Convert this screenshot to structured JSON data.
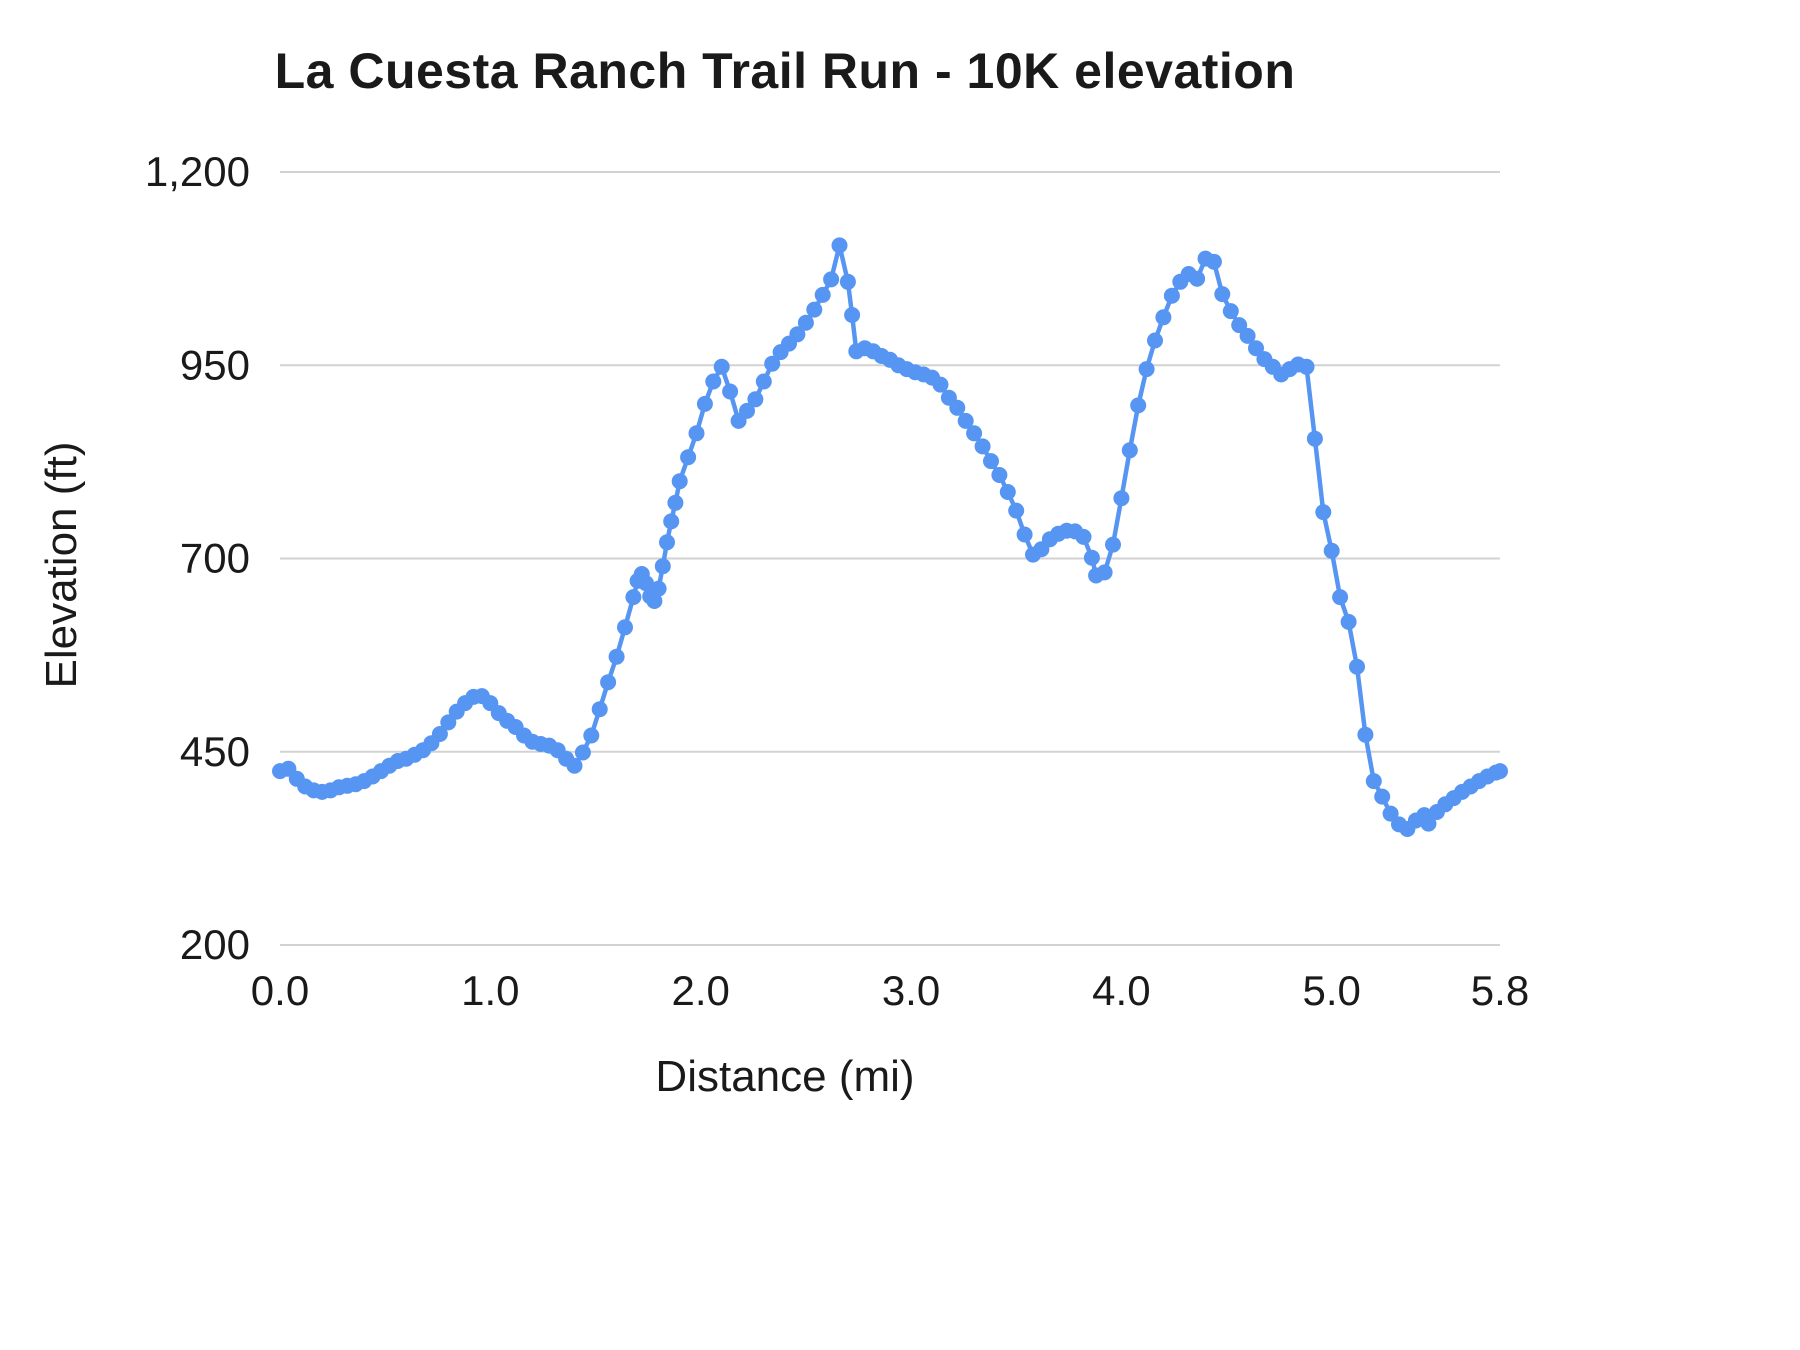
{
  "style": {
    "line_color": "#5795f3",
    "grid_color": "#d2d2d2",
    "text_color": "#1a1a1a",
    "background": "#ffffff"
  },
  "chart_data": {
    "type": "line",
    "title": "La Cuesta Ranch Trail Run - 10K elevation",
    "xlabel": "Distance (mi)",
    "ylabel": "Elevation (ft)",
    "xlim": [
      0,
      5.8
    ],
    "ylim": [
      200,
      1200
    ],
    "grid": "horizontal",
    "legend": "none",
    "markers": true,
    "x_tick_values": [
      0,
      1,
      2,
      3,
      4,
      5,
      5.8
    ],
    "x_tick_labels": [
      "0.0",
      "1.0",
      "2.0",
      "3.0",
      "4.0",
      "5.0",
      "5.8"
    ],
    "y_tick_values": [
      200,
      450,
      700,
      950,
      1200
    ],
    "y_tick_labels": [
      "200",
      "450",
      "700",
      "950",
      "1,200"
    ],
    "series_name": "Elevation (ft)",
    "points": [
      [
        0.0,
        425
      ],
      [
        0.04,
        428
      ],
      [
        0.08,
        415
      ],
      [
        0.12,
        405
      ],
      [
        0.16,
        400
      ],
      [
        0.2,
        398
      ],
      [
        0.24,
        400
      ],
      [
        0.28,
        404
      ],
      [
        0.32,
        406
      ],
      [
        0.36,
        408
      ],
      [
        0.4,
        412
      ],
      [
        0.44,
        418
      ],
      [
        0.48,
        425
      ],
      [
        0.52,
        432
      ],
      [
        0.56,
        438
      ],
      [
        0.6,
        441
      ],
      [
        0.64,
        446
      ],
      [
        0.68,
        452
      ],
      [
        0.72,
        461
      ],
      [
        0.76,
        473
      ],
      [
        0.8,
        488
      ],
      [
        0.84,
        502
      ],
      [
        0.88,
        513
      ],
      [
        0.92,
        521
      ],
      [
        0.96,
        522
      ],
      [
        1.0,
        513
      ],
      [
        1.04,
        500
      ],
      [
        1.08,
        490
      ],
      [
        1.12,
        482
      ],
      [
        1.16,
        471
      ],
      [
        1.2,
        463
      ],
      [
        1.24,
        460
      ],
      [
        1.28,
        458
      ],
      [
        1.32,
        452
      ],
      [
        1.36,
        441
      ],
      [
        1.4,
        432
      ],
      [
        1.44,
        449
      ],
      [
        1.48,
        471
      ],
      [
        1.52,
        505
      ],
      [
        1.56,
        540
      ],
      [
        1.6,
        573
      ],
      [
        1.64,
        611
      ],
      [
        1.68,
        650
      ],
      [
        1.7,
        671
      ],
      [
        1.72,
        680
      ],
      [
        1.74,
        668
      ],
      [
        1.76,
        651
      ],
      [
        1.78,
        645
      ],
      [
        1.8,
        661
      ],
      [
        1.82,
        690
      ],
      [
        1.84,
        721
      ],
      [
        1.86,
        748
      ],
      [
        1.88,
        772
      ],
      [
        1.9,
        800
      ],
      [
        1.94,
        831
      ],
      [
        1.98,
        862
      ],
      [
        2.02,
        900
      ],
      [
        2.06,
        929
      ],
      [
        2.1,
        948
      ],
      [
        2.14,
        916
      ],
      [
        2.18,
        878
      ],
      [
        2.22,
        891
      ],
      [
        2.26,
        906
      ],
      [
        2.3,
        929
      ],
      [
        2.34,
        952
      ],
      [
        2.38,
        967
      ],
      [
        2.42,
        978
      ],
      [
        2.46,
        990
      ],
      [
        2.5,
        1005
      ],
      [
        2.54,
        1022
      ],
      [
        2.58,
        1041
      ],
      [
        2.62,
        1061
      ],
      [
        2.66,
        1105
      ],
      [
        2.7,
        1058
      ],
      [
        2.72,
        1015
      ],
      [
        2.74,
        968
      ],
      [
        2.78,
        972
      ],
      [
        2.82,
        968
      ],
      [
        2.86,
        962
      ],
      [
        2.9,
        957
      ],
      [
        2.94,
        950
      ],
      [
        2.98,
        945
      ],
      [
        3.02,
        941
      ],
      [
        3.06,
        938
      ],
      [
        3.1,
        934
      ],
      [
        3.14,
        925
      ],
      [
        3.18,
        908
      ],
      [
        3.22,
        895
      ],
      [
        3.26,
        878
      ],
      [
        3.3,
        862
      ],
      [
        3.34,
        845
      ],
      [
        3.38,
        826
      ],
      [
        3.42,
        808
      ],
      [
        3.46,
        786
      ],
      [
        3.5,
        762
      ],
      [
        3.54,
        731
      ],
      [
        3.58,
        705
      ],
      [
        3.62,
        712
      ],
      [
        3.66,
        725
      ],
      [
        3.7,
        732
      ],
      [
        3.74,
        736
      ],
      [
        3.78,
        735
      ],
      [
        3.82,
        728
      ],
      [
        3.86,
        701
      ],
      [
        3.88,
        678
      ],
      [
        3.92,
        682
      ],
      [
        3.96,
        718
      ],
      [
        4.0,
        778
      ],
      [
        4.04,
        840
      ],
      [
        4.08,
        898
      ],
      [
        4.12,
        945
      ],
      [
        4.16,
        982
      ],
      [
        4.2,
        1012
      ],
      [
        4.24,
        1040
      ],
      [
        4.28,
        1058
      ],
      [
        4.32,
        1068
      ],
      [
        4.36,
        1062
      ],
      [
        4.4,
        1088
      ],
      [
        4.44,
        1084
      ],
      [
        4.48,
        1042
      ],
      [
        4.52,
        1020
      ],
      [
        4.56,
        1002
      ],
      [
        4.6,
        988
      ],
      [
        4.64,
        972
      ],
      [
        4.68,
        958
      ],
      [
        4.72,
        948
      ],
      [
        4.76,
        938
      ],
      [
        4.8,
        945
      ],
      [
        4.84,
        951
      ],
      [
        4.88,
        948
      ],
      [
        4.92,
        855
      ],
      [
        4.96,
        760
      ],
      [
        5.0,
        710
      ],
      [
        5.04,
        650
      ],
      [
        5.08,
        618
      ],
      [
        5.12,
        560
      ],
      [
        5.16,
        472
      ],
      [
        5.2,
        412
      ],
      [
        5.24,
        392
      ],
      [
        5.28,
        370
      ],
      [
        5.32,
        356
      ],
      [
        5.36,
        350
      ],
      [
        5.4,
        361
      ],
      [
        5.44,
        368
      ],
      [
        5.46,
        357
      ],
      [
        5.5,
        372
      ],
      [
        5.54,
        382
      ],
      [
        5.58,
        390
      ],
      [
        5.62,
        398
      ],
      [
        5.66,
        405
      ],
      [
        5.7,
        412
      ],
      [
        5.74,
        418
      ],
      [
        5.78,
        423
      ],
      [
        5.8,
        425
      ]
    ]
  }
}
